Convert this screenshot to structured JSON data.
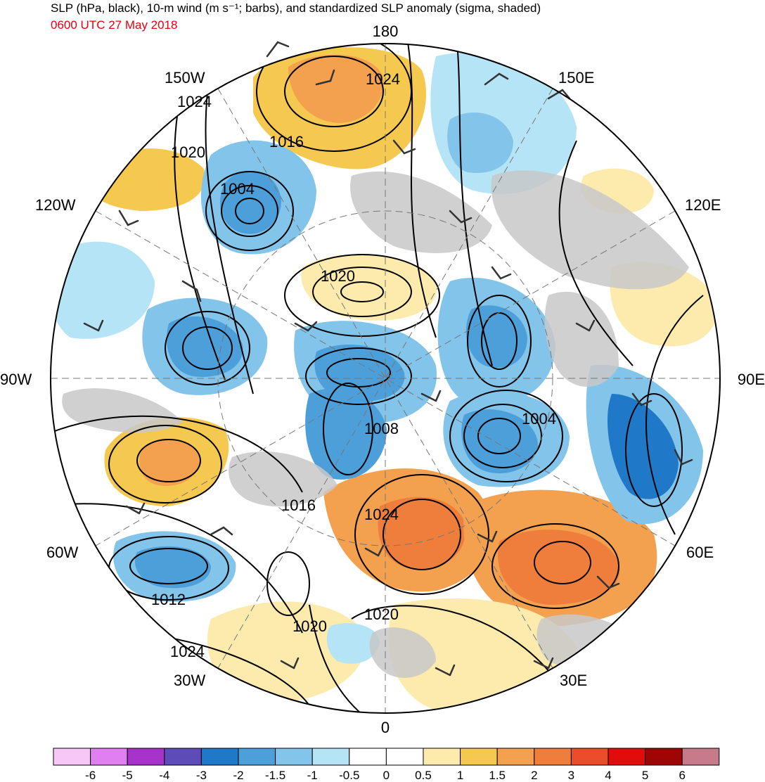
{
  "title": "SLP (hPa, black), 10-m wind (m s⁻¹; barbs), and standardized SLP anomaly (sigma, shaded)",
  "subtitle": "0600 UTC 27 May 2018",
  "colors": {
    "subtitle": "#e8000b",
    "ocean_neutral": "#ffffff",
    "land_mask": "#c8c8c8",
    "contour": "#000000"
  },
  "longitude_labels": {
    "top": "180",
    "bottom": "0",
    "left": "90W",
    "right": "90E",
    "upper_left_1": "150W",
    "upper_left_2": "120W",
    "upper_right_1": "150E",
    "upper_right_2": "120E",
    "lower_left_1": "60W",
    "lower_left_2": "30W",
    "lower_right_1": "60E",
    "lower_right_2": "30E"
  },
  "contour_labels": [
    "1024",
    "1024",
    "1016",
    "1020",
    "1004",
    "1020",
    "1004",
    "1008",
    "1016",
    "1024",
    "1012",
    "1020",
    "1020",
    "1024"
  ],
  "colorbar": {
    "colors": [
      "#f7c7f7",
      "#df7ff0",
      "#a833cc",
      "#5d4cb8",
      "#1f78c8",
      "#4d9fd9",
      "#83c4ea",
      "#b4e4f5",
      "#ffffff",
      "#ffffff",
      "#fcebad",
      "#f5c94f",
      "#f3a04f",
      "#ef7d3c",
      "#ea4c2c",
      "#e10c0c",
      "#a00505",
      "#c77a89"
    ],
    "labels": [
      "-6",
      "-5",
      "-4",
      "-3",
      "-2",
      "-1.5",
      "-1",
      "-0.5",
      "0",
      "0.5",
      "1",
      "1.5",
      "2",
      "3",
      "4",
      "5",
      "6"
    ]
  }
}
